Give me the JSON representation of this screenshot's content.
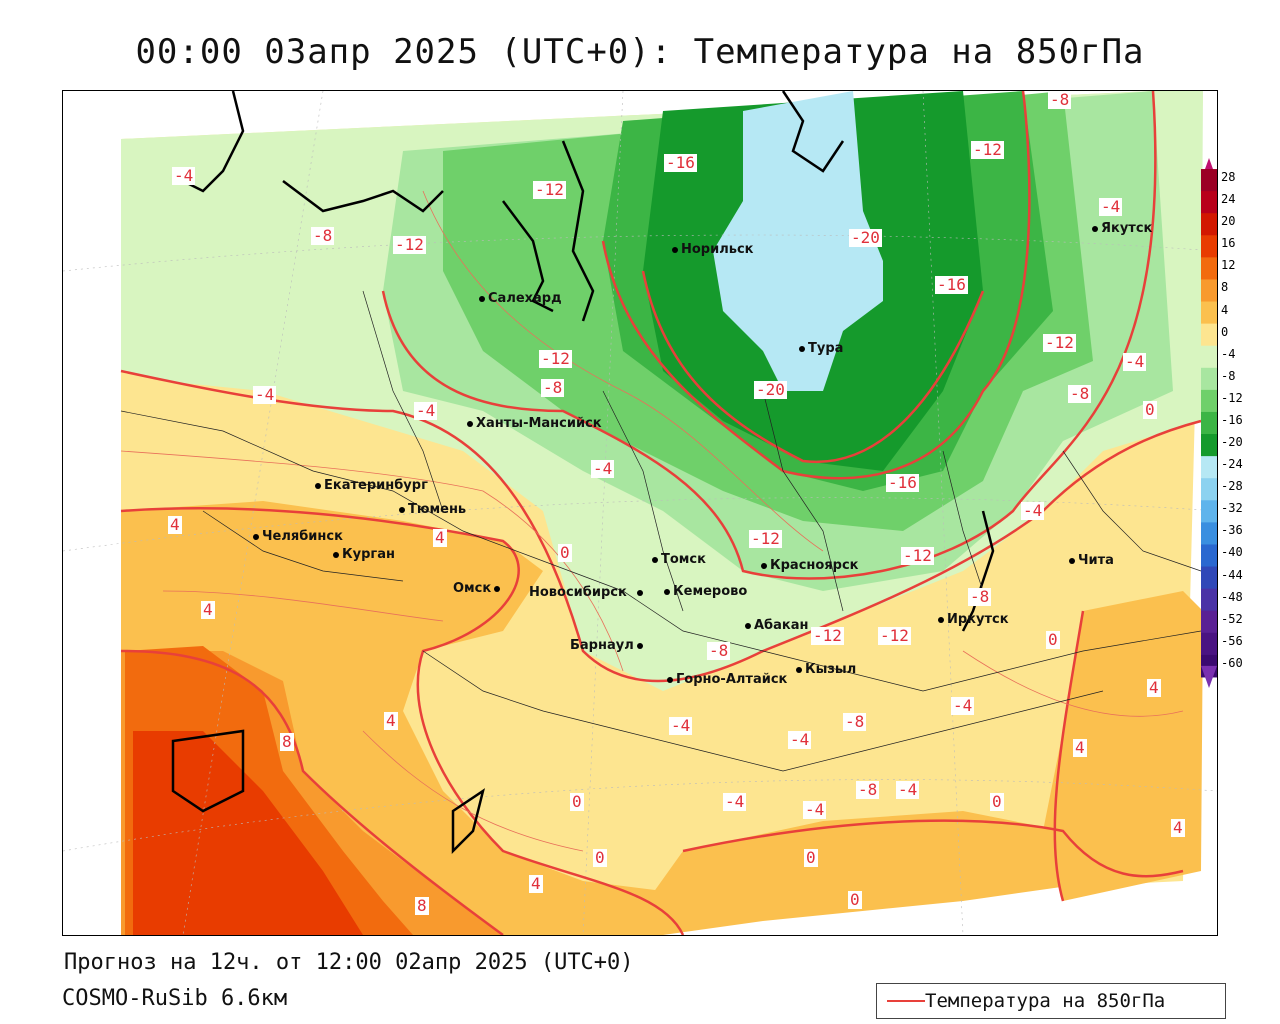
{
  "title": "00:00 03апр 2025 (UTC+0): Температура на 850гПа",
  "subtitle_forecast": "Прогноз на 12ч. от 12:00 02апр 2025 (UTC+0)",
  "subtitle_model": "COSMO-RuSib 6.6км",
  "legend": {
    "label": "Температура на 850гПа",
    "line_color": "#e8403a"
  },
  "colorbar": {
    "labels": [
      "28",
      "24",
      "20",
      "16",
      "12",
      "8",
      "4",
      "0",
      "-4",
      "-8",
      "-12",
      "-16",
      "-20",
      "-24",
      "-28",
      "-32",
      "-36",
      "-40",
      "-44",
      "-48",
      "-52",
      "-56",
      "-60"
    ],
    "colors": [
      "#9b0025",
      "#b8001a",
      "#d21800",
      "#e83c00",
      "#f26b0e",
      "#f89a2e",
      "#fbc04e",
      "#fde590",
      "#d8f5c0",
      "#a8e6a0",
      "#6fd06a",
      "#3cb545",
      "#159a2c",
      "#b6e8f4",
      "#8cd2f0",
      "#5fb4ec",
      "#3a8fe0",
      "#2a68d0",
      "#3048b8",
      "#4a32a6",
      "#5a2094",
      "#4a1382",
      "#3b0a70"
    ]
  },
  "cities": [
    {
      "name": "Норильск"
    },
    {
      "name": "Салехард"
    },
    {
      "name": "Тура"
    },
    {
      "name": "Якутск"
    },
    {
      "name": "Ханты-Мансийск"
    },
    {
      "name": "Екатеринбург"
    },
    {
      "name": "Тюмень"
    },
    {
      "name": "Челябинск"
    },
    {
      "name": "Курган"
    },
    {
      "name": "Омск"
    },
    {
      "name": "Новосибирск"
    },
    {
      "name": "Томск"
    },
    {
      "name": "Кемерово"
    },
    {
      "name": "Красноярск"
    },
    {
      "name": "Барнаул"
    },
    {
      "name": "Абакан"
    },
    {
      "name": "Горно-Алтайск"
    },
    {
      "name": "Кызыл"
    },
    {
      "name": "Иркутск"
    },
    {
      "name": "Чита"
    }
  ],
  "contour_labels": [
    "-4",
    "-8",
    "-12",
    "-16",
    "-20",
    "0",
    "4",
    "8"
  ]
}
